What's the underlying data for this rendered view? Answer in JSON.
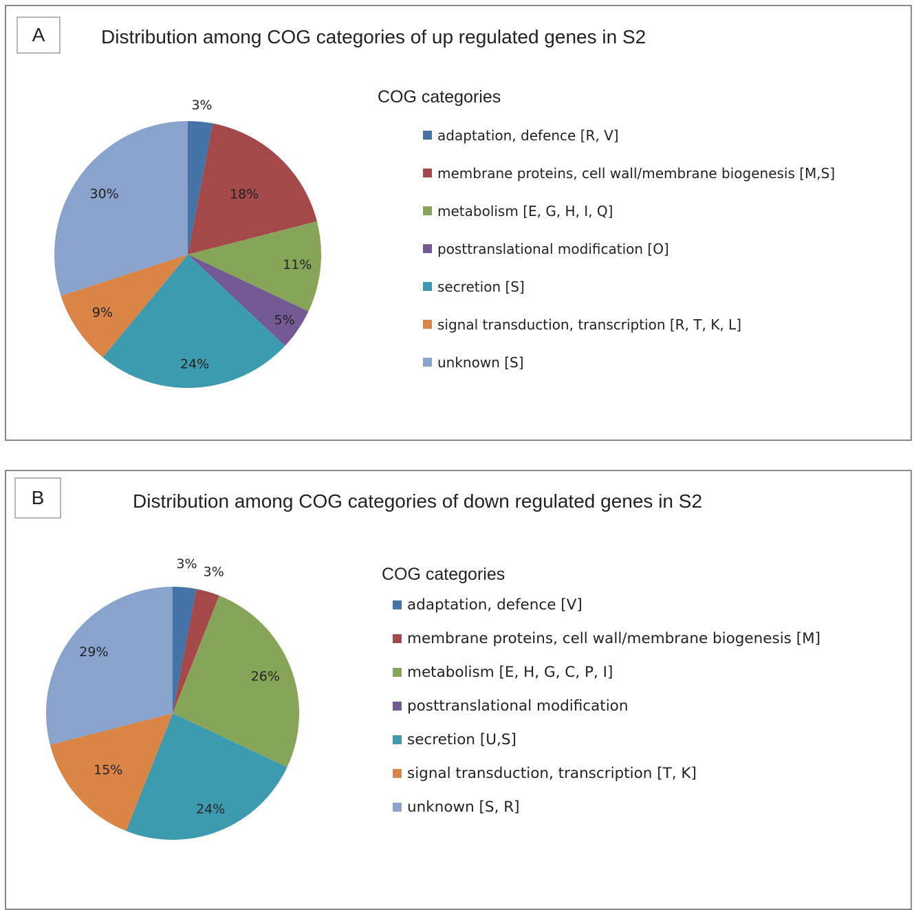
{
  "chart_data": [
    {
      "type": "pie",
      "panel_label": "A",
      "title": "Distribution among COG categories of up regulated genes in S2",
      "legend_title": "COG categories",
      "colors": [
        "#4473a8",
        "#a4484a",
        "#86a558",
        "#735a95",
        "#3d9baf",
        "#da8545",
        "#88a3cc"
      ],
      "slices": [
        {
          "label": "adaptation, defence [R, V]",
          "value": 3,
          "value_label": "3%"
        },
        {
          "label": "membrane proteins, cell wall/membrane biogenesis [M,S]",
          "value": 18,
          "value_label": "18%"
        },
        {
          "label": "metabolism [E, G, H, I, Q]",
          "value": 11,
          "value_label": "11%"
        },
        {
          "label": "posttranslational modification [O]",
          "value": 5,
          "value_label": "5%"
        },
        {
          "label": "secretion [S]",
          "value": 24,
          "value_label": "24%"
        },
        {
          "label": "signal transduction, transcription [R, T, K, L]",
          "value": 9,
          "value_label": "9%"
        },
        {
          "label": "unknown [S]",
          "value": 30,
          "value_label": "30%"
        }
      ]
    },
    {
      "type": "pie",
      "panel_label": "B",
      "title": "Distribution among COG categories of down regulated genes in S2",
      "legend_title": "COG categories",
      "colors": [
        "#4473a8",
        "#a4484a",
        "#86a558",
        "#735a95",
        "#3d9baf",
        "#da8545",
        "#88a3cc"
      ],
      "slices": [
        {
          "label": "adaptation, defence [V]",
          "value": 3,
          "value_label": "3%"
        },
        {
          "label": "membrane proteins, cell wall/membrane biogenesis [M]",
          "value": 3,
          "value_label": "3%"
        },
        {
          "label": "metabolism [E, H, G, C, P, I]",
          "value": 26,
          "value_label": "26%"
        },
        {
          "label": "posttranslational modification",
          "value": 0,
          "value_label": ""
        },
        {
          "label": "secretion [U,S]",
          "value": 24,
          "value_label": "24%"
        },
        {
          "label": "signal transduction, transcription [T, K]",
          "value": 15,
          "value_label": "15%"
        },
        {
          "label": "unknown [S, R]",
          "value": 29,
          "value_label": "29%"
        }
      ]
    }
  ]
}
